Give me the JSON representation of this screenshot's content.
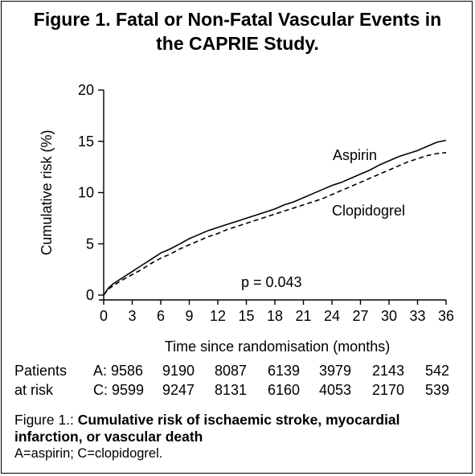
{
  "figure": {
    "title_line1": "Figure 1. Fatal or Non-Fatal Vascular Events in",
    "title_line2": "the CAPRIE Study.",
    "caption_prefix": "Figure 1.: ",
    "caption_bold": "Cumulative risk of ischaemic stroke, myocardial infarction, or vascular death",
    "caption_note": "A=aspirin; C=clopidogrel."
  },
  "chart_data": {
    "type": "line",
    "xlabel": "Time since randomisation (months)",
    "ylabel": "Cumulative risk (%)",
    "xlim": [
      0,
      36
    ],
    "ylim": [
      0,
      20
    ],
    "xticks": [
      0,
      3,
      6,
      9,
      12,
      15,
      18,
      21,
      24,
      27,
      30,
      33,
      36
    ],
    "yticks": [
      0,
      5,
      10,
      15,
      20
    ],
    "grid": false,
    "annotation": "p = 0.043",
    "series": [
      {
        "name": "Aspirin",
        "style": "solid",
        "x": [
          0,
          0.5,
          1,
          2,
          3,
          4,
          5,
          6,
          7,
          8,
          9,
          10,
          11,
          12,
          13,
          14,
          15,
          16,
          17,
          18,
          19,
          20,
          21,
          22,
          23,
          24,
          25,
          26,
          27,
          28,
          29,
          30,
          31,
          32,
          33,
          34,
          35,
          36
        ],
        "values": [
          0,
          0.7,
          1.1,
          1.7,
          2.3,
          2.9,
          3.5,
          4.1,
          4.5,
          5.0,
          5.5,
          5.9,
          6.3,
          6.6,
          6.9,
          7.2,
          7.5,
          7.8,
          8.1,
          8.4,
          8.8,
          9.1,
          9.5,
          9.9,
          10.3,
          10.7,
          11.0,
          11.4,
          11.8,
          12.2,
          12.7,
          13.1,
          13.5,
          13.8,
          14.1,
          14.5,
          14.9,
          15.1
        ]
      },
      {
        "name": "Clopidogrel",
        "style": "dashed",
        "x": [
          0,
          0.5,
          1,
          2,
          3,
          4,
          5,
          6,
          7,
          8,
          9,
          10,
          11,
          12,
          13,
          14,
          15,
          16,
          17,
          18,
          19,
          20,
          21,
          22,
          23,
          24,
          25,
          26,
          27,
          28,
          29,
          30,
          31,
          32,
          33,
          34,
          35,
          36
        ],
        "values": [
          0,
          0.6,
          0.9,
          1.5,
          2.0,
          2.5,
          3.1,
          3.6,
          4.0,
          4.5,
          4.9,
          5.3,
          5.7,
          6.0,
          6.4,
          6.7,
          7.0,
          7.3,
          7.6,
          7.9,
          8.2,
          8.5,
          8.8,
          9.1,
          9.4,
          9.8,
          10.2,
          10.6,
          11.0,
          11.4,
          11.8,
          12.2,
          12.6,
          13.0,
          13.3,
          13.6,
          13.8,
          13.9
        ]
      }
    ]
  },
  "risk_table": {
    "row_label_1": "Patients",
    "row_label_2": "at risk",
    "rows": [
      {
        "prefix": "A: ",
        "values": [
          "9586",
          "9190",
          "8087",
          "6139",
          "3979",
          "2143",
          "542"
        ]
      },
      {
        "prefix": "C: ",
        "values": [
          "9599",
          "9247",
          "8131",
          "6160",
          "4053",
          "2170",
          "539"
        ]
      }
    ]
  }
}
